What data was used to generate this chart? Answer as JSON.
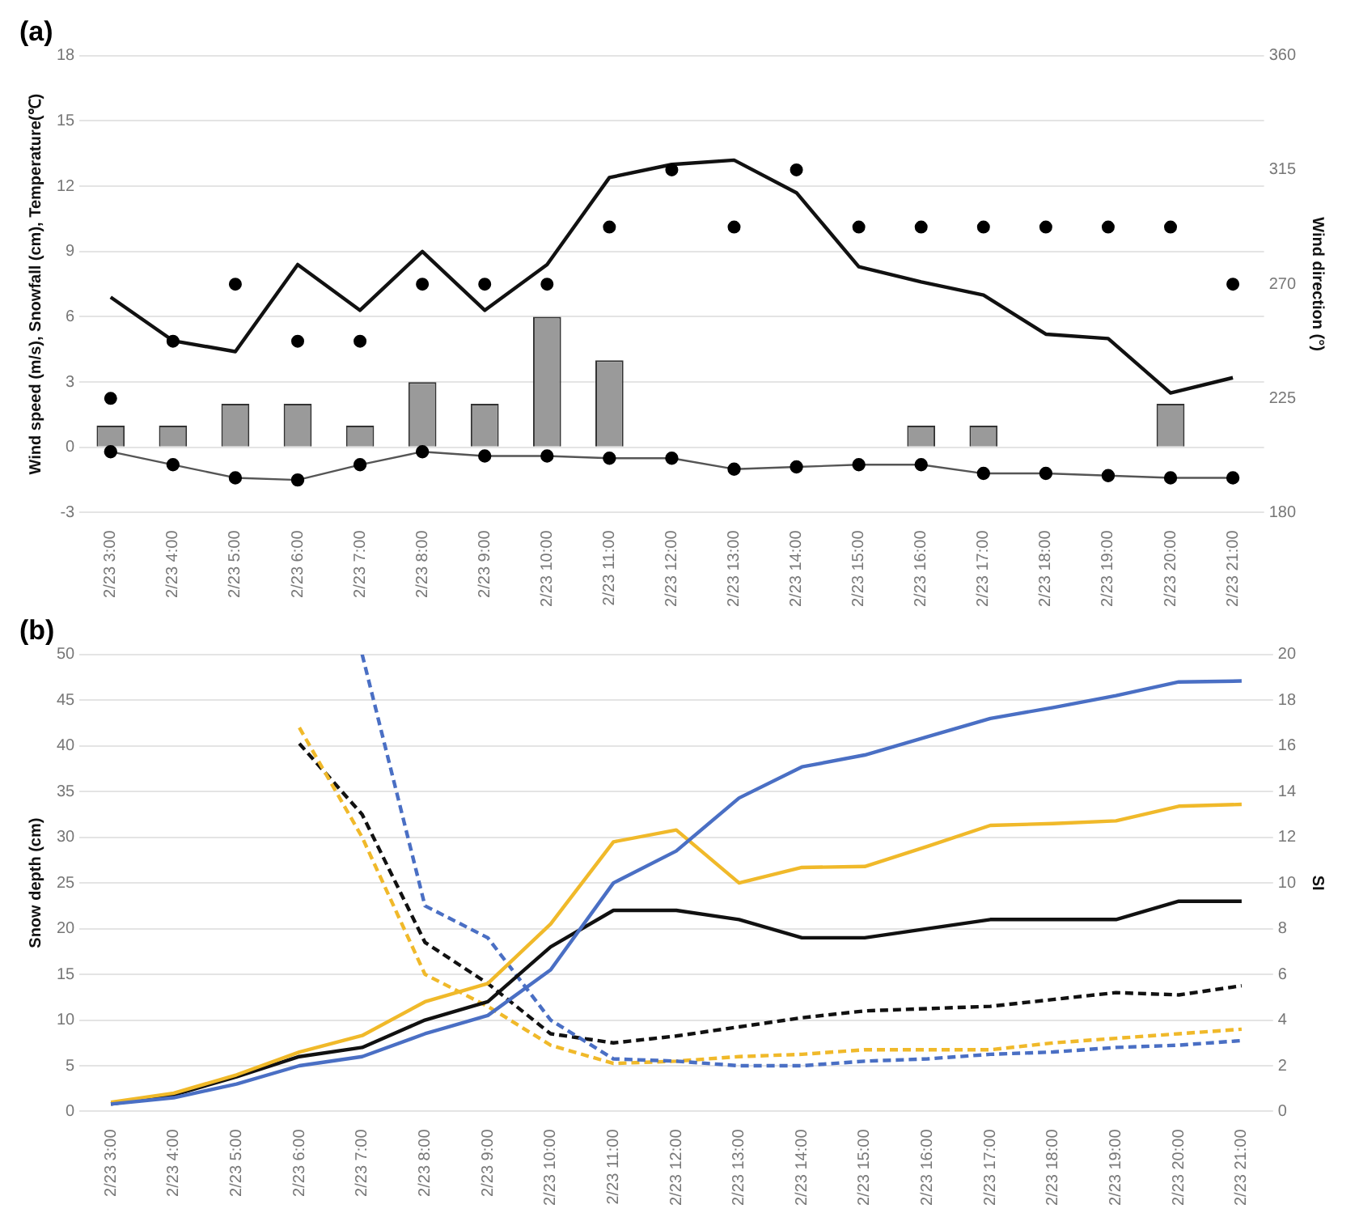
{
  "chart_data": [
    {
      "type": "bar",
      "title": "(a)",
      "ylabel": "Wind speed (m/s), Snowfall (cm), Temperature(℃)",
      "y2label": "Wind direction (°)",
      "categories": [
        "2/23 3:00",
        "2/23 4:00",
        "2/23 5:00",
        "2/23 6:00",
        "2/23 7:00",
        "2/23 8:00",
        "2/23 9:00",
        "2/23 10:00",
        "2/23 11:00",
        "2/23 12:00",
        "2/23 13:00",
        "2/23 14:00",
        "2/23 15:00",
        "2/23 16:00",
        "2/23 17:00",
        "2/23 18:00",
        "2/23 19:00",
        "2/23 20:00",
        "2/23 21:00"
      ],
      "series": [
        {
          "color": "#9a9a9a",
          "values": [
            1,
            1,
            2,
            2,
            1,
            3,
            2,
            6,
            4,
            null,
            null,
            null,
            null,
            1,
            1,
            null,
            null,
            2,
            null
          ]
        },
        {
          "type": "line",
          "color": "#111111",
          "marker": "none",
          "line_style": "solid",
          "values": [
            6.9,
            4.9,
            4.4,
            8.4,
            6.3,
            9.0,
            6.3,
            8.4,
            12.4,
            13.0,
            13.2,
            11.7,
            8.3,
            7.6,
            7.0,
            5.2,
            5.0,
            2.5,
            3.2
          ]
        },
        {
          "type": "line",
          "color": "#555555",
          "marker": "circle",
          "line_style": "solid",
          "values": [
            -0.2,
            -0.8,
            -1.4,
            -1.5,
            -0.8,
            -0.2,
            -0.4,
            -0.4,
            -0.5,
            -0.5,
            -1.0,
            -0.9,
            -0.8,
            -0.8,
            -1.2,
            -1.2,
            -1.3,
            -1.4,
            -1.4
          ]
        },
        {
          "type": "scatter",
          "axis": "y2",
          "color": "#000000",
          "marker": "circle",
          "values": [
            225,
            247.5,
            270,
            247.5,
            247.5,
            270,
            270,
            270,
            292.5,
            315,
            292.5,
            315,
            292.5,
            292.5,
            292.5,
            292.5,
            292.5,
            292.5,
            270
          ]
        }
      ],
      "ylim": [
        -3,
        18
      ],
      "yticks": [
        -3,
        0,
        3,
        6,
        9,
        12,
        15,
        18
      ],
      "y2lim": [
        180,
        360
      ],
      "y2ticks": [
        180,
        225,
        270,
        315,
        360
      ],
      "grid": "y"
    },
    {
      "type": "line",
      "title": "(b)",
      "ylabel": "Snow depth (cm)",
      "y2label": "SI",
      "categories": [
        "2/23 3:00",
        "2/23 4:00",
        "2/23 5:00",
        "2/23 6:00",
        "2/23 7:00",
        "2/23 8:00",
        "2/23 9:00",
        "2/23 10:00",
        "2/23 11:00",
        "2/23 12:00",
        "2/23 13:00",
        "2/23 14:00",
        "2/23 15:00",
        "2/23 16:00",
        "2/23 17:00",
        "2/23 18:00",
        "2/23 19:00",
        "2/23 20:00",
        "2/23 21:00"
      ],
      "series": [
        {
          "color": "#4a6fc4",
          "line_style": "solid",
          "values": [
            0.8,
            1.5,
            3,
            5,
            6,
            8.5,
            10.5,
            15.5,
            25,
            28.5,
            34.3,
            37.7,
            39,
            41,
            43,
            44.2,
            45.5,
            47,
            47.1
          ]
        },
        {
          "color": "#f0b92a",
          "line_style": "solid",
          "values": [
            1,
            2,
            4,
            6.5,
            8.3,
            12,
            14,
            20.5,
            29.5,
            30.8,
            25,
            26.7,
            26.8,
            29,
            31.3,
            31.5,
            31.8,
            33.4,
            33.6
          ]
        },
        {
          "color": "#111111",
          "line_style": "solid",
          "values": [
            0.8,
            1.8,
            3.8,
            6,
            7,
            10,
            12,
            18,
            22,
            22,
            21,
            19,
            19,
            20,
            21,
            21,
            21,
            23,
            23
          ]
        },
        {
          "color": "#4a6fc4",
          "line_style": "dashed",
          "axis": "y2",
          "values": [
            null,
            null,
            null,
            null,
            20,
            9,
            7.6,
            4,
            2.3,
            2.2,
            2.0,
            2.0,
            2.2,
            2.3,
            2.5,
            2.6,
            2.8,
            2.9,
            3.1
          ]
        },
        {
          "color": "#f0b92a",
          "line_style": "dashed",
          "axis": "y2",
          "values": [
            null,
            null,
            null,
            16.8,
            12,
            6,
            4.6,
            2.9,
            2.1,
            2.2,
            2.4,
            2.5,
            2.7,
            2.7,
            2.7,
            3.0,
            3.2,
            3.4,
            3.6
          ]
        },
        {
          "color": "#111111",
          "line_style": "dashed",
          "axis": "y2",
          "values": [
            null,
            null,
            null,
            16.1,
            13,
            7.4,
            5.6,
            3.4,
            3.0,
            3.3,
            3.7,
            4.1,
            4.4,
            4.5,
            4.6,
            4.9,
            5.2,
            5.1,
            5.5
          ]
        }
      ],
      "ylim": [
        0,
        50
      ],
      "yticks": [
        0,
        5,
        10,
        15,
        20,
        25,
        30,
        35,
        40,
        45,
        50
      ],
      "y2lim": [
        0,
        20
      ],
      "y2ticks": [
        0,
        2,
        4,
        6,
        8,
        10,
        12,
        14,
        16,
        18,
        20
      ],
      "grid": "y"
    }
  ]
}
